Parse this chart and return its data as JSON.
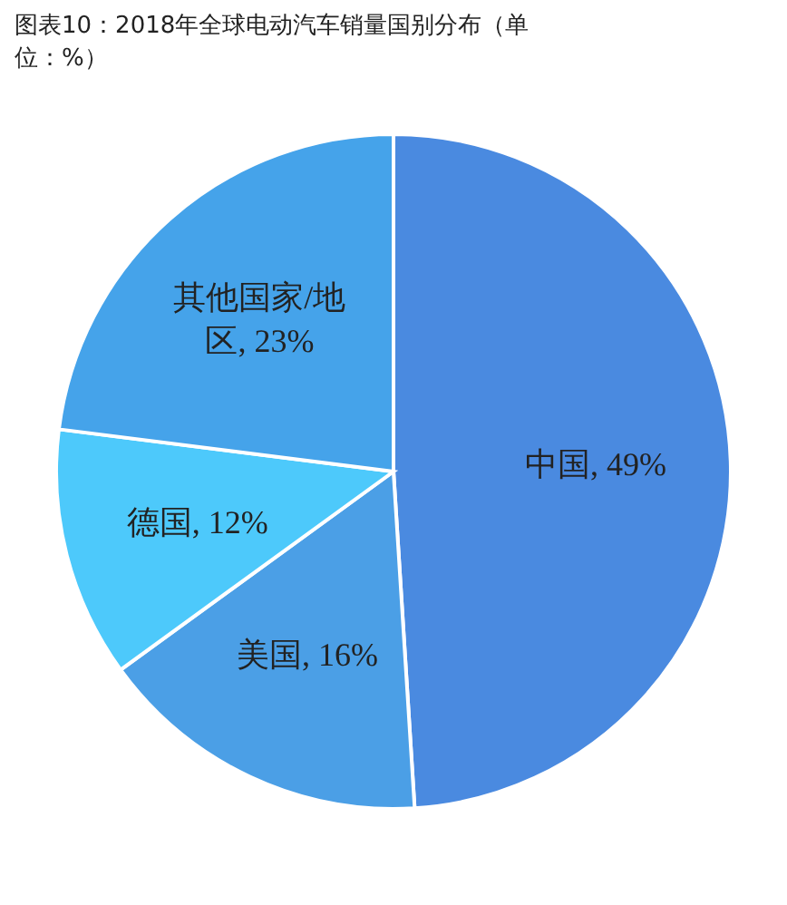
{
  "chart_data": {
    "type": "pie",
    "title": "图表10：2018年全球电动汽车销量国别分布（单位：%）",
    "categories": [
      "中国",
      "美国",
      "德国",
      "其他国家/地区"
    ],
    "values": [
      49,
      16,
      12,
      23
    ],
    "value_labels": [
      "49%",
      "16%",
      "12%",
      "23%"
    ],
    "colors": [
      "#4a8ae0",
      "#4b9fe6",
      "#4dc9fb",
      "#45a3ea"
    ]
  }
}
